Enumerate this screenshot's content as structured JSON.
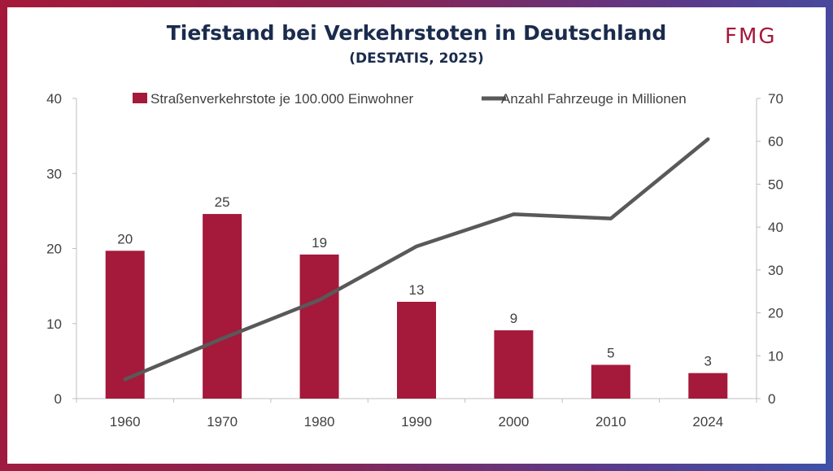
{
  "header": {
    "title": "Tiefstand bei Verkehrstoten in Deutschland",
    "subtitle": "(DESTATIS, 2025)",
    "logo": "FMG"
  },
  "colors": {
    "bar": "#a5193a",
    "line": "#595959",
    "title": "#1a2b4c",
    "axis_text": "#404040"
  },
  "chart_data": {
    "type": "bar",
    "categories": [
      "1960",
      "1970",
      "1980",
      "1990",
      "2000",
      "2010",
      "2024"
    ],
    "series": [
      {
        "name": "Straßenverkehrstote je 100.000 Einwohner",
        "type": "bar",
        "axis": "left",
        "values": [
          20,
          25,
          19,
          13,
          9,
          5,
          3
        ],
        "plotted_values": [
          19.7,
          24.6,
          19.2,
          12.9,
          9.1,
          4.5,
          3.4
        ],
        "data_labels": [
          "20",
          "25",
          "19",
          "13",
          "9",
          "5",
          "3"
        ]
      },
      {
        "name": "Anzahl Fahrzeuge in Millionen",
        "type": "line",
        "axis": "right",
        "values": [
          4.5,
          14,
          23,
          35.5,
          43,
          42,
          60.5
        ]
      }
    ],
    "y_left": {
      "lim": [
        0,
        40
      ],
      "ticks": [
        "0",
        "10",
        "20",
        "30",
        "40"
      ]
    },
    "y_right": {
      "lim": [
        0,
        70
      ],
      "ticks": [
        "0",
        "10",
        "20",
        "30",
        "40",
        "50",
        "60",
        "70"
      ]
    },
    "legend_position": "top",
    "grid": false
  }
}
